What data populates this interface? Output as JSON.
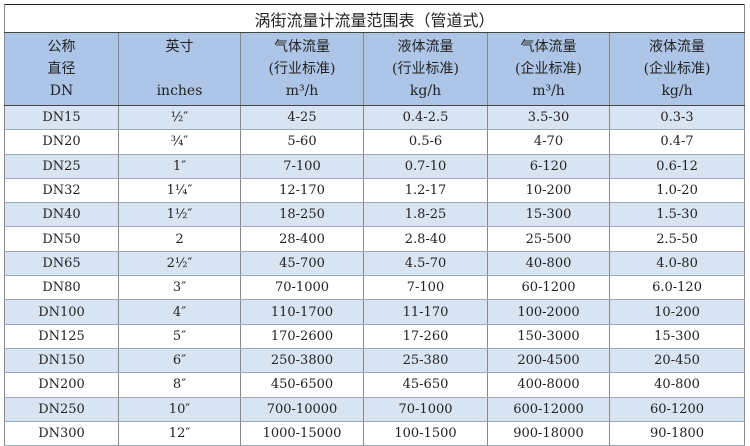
{
  "title": "涡街流量计流量范围表（管道式）",
  "headers": [
    [
      "公称",
      "直径",
      "DN"
    ],
    [
      "英寸",
      "",
      "inches"
    ],
    [
      "气体流量",
      "(行业标准)",
      "m³/h"
    ],
    [
      "液体流量",
      "(行业标准)",
      "kg/h"
    ],
    [
      "气体流量",
      "(企业标准)",
      "m³/h"
    ],
    [
      "液体流量",
      "(企业标准)",
      "kg/h"
    ]
  ],
  "rows": [
    [
      "DN15",
      "½″",
      "4-25",
      "0.4-2.5",
      "3.5-30",
      "0.3-3"
    ],
    [
      "DN20",
      "¾″",
      "5-60",
      "0.5-6",
      "4-70",
      "0.4-7"
    ],
    [
      "DN25",
      "1″",
      "7-100",
      "0.7-10",
      "6-120",
      "0.6-12"
    ],
    [
      "DN32",
      "1¼″",
      "12-170",
      "1.2-17",
      "10-200",
      "1.0-20"
    ],
    [
      "DN40",
      "1½″",
      "18-250",
      "1.8-25",
      "15-300",
      "1.5-30"
    ],
    [
      "DN50",
      "2",
      "28-400",
      "2.8-40",
      "25-500",
      "2.5-50"
    ],
    [
      "DN65",
      "2½″",
      "45-700",
      "4.5-70",
      "40-800",
      "4.0-80"
    ],
    [
      "DN80",
      "3″",
      "70-1000",
      "7-100",
      "60-1200",
      "6.0-120"
    ],
    [
      "DN100",
      "4″",
      "110-1700",
      "11-170",
      "100-2000",
      "10-200"
    ],
    [
      "DN125",
      "5″",
      "170-2600",
      "17-260",
      "150-3000",
      "15-300"
    ],
    [
      "DN150",
      "6″",
      "250-3800",
      "25-380",
      "200-4500",
      "20-450"
    ],
    [
      "DN200",
      "8″",
      "450-6500",
      "45-650",
      "400-8000",
      "40-800"
    ],
    [
      "DN250",
      "10″",
      "700-10000",
      "70-1000",
      "600-12000",
      "60-1200"
    ],
    [
      "DN300",
      "12″",
      "1000-15000",
      "100-1500",
      "900-18000",
      "90-1800"
    ]
  ],
  "colors": {
    "header_bg": "#adc5e6",
    "row_alt_bg": "#d9e4f3"
  }
}
